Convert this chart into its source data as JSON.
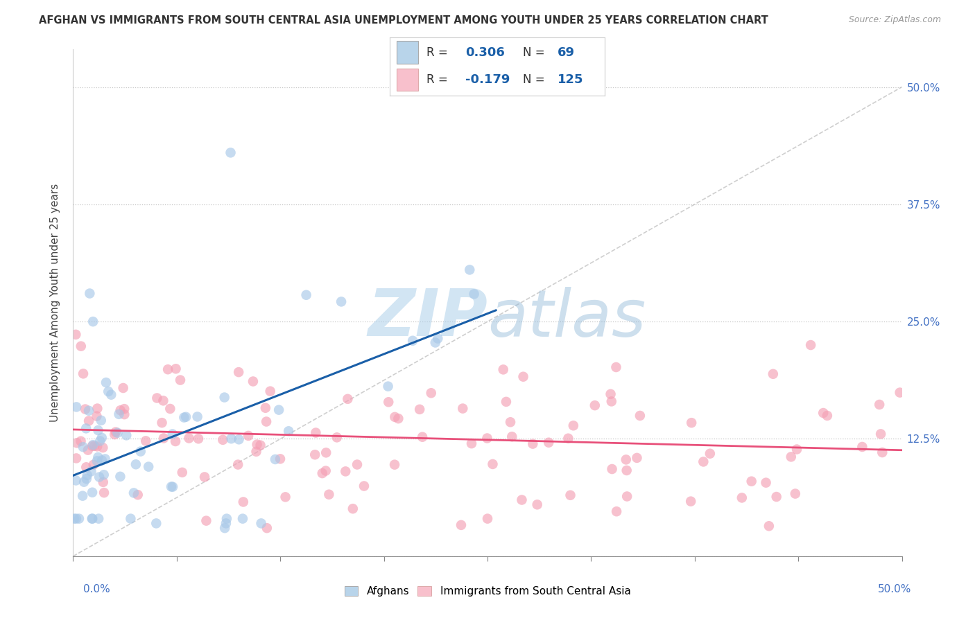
{
  "title": "AFGHAN VS IMMIGRANTS FROM SOUTH CENTRAL ASIA UNEMPLOYMENT AMONG YOUTH UNDER 25 YEARS CORRELATION CHART",
  "source": "Source: ZipAtlas.com",
  "ylabel": "Unemployment Among Youth under 25 years",
  "ytick_values": [
    0,
    0.125,
    0.25,
    0.375,
    0.5
  ],
  "ytick_labels": [
    "",
    "12.5%",
    "25.0%",
    "37.5%",
    "50.0%"
  ],
  "xlim": [
    0.0,
    0.5
  ],
  "ylim": [
    0.0,
    0.54
  ],
  "blue_scatter_color": "#a8c8e8",
  "pink_scatter_color": "#f4a0b5",
  "blue_line_color": "#1a5fa8",
  "pink_line_color": "#e8507a",
  "blue_fill": "#b8d4ea",
  "pink_fill": "#f8c0cc",
  "watermark_color": "#cce0f0",
  "watermark_alpha": 0.6,
  "grid_color": "#c8c8c8",
  "ref_line_color": "#bbbbbb",
  "background_color": "#ffffff",
  "legend_text_color": "#1a5fa8",
  "legend_label_color": "#333333",
  "axis_label_color": "#4472c4",
  "blue_trend_x": [
    0.0,
    0.255
  ],
  "blue_trend_y": [
    0.086,
    0.262
  ],
  "pink_trend_x": [
    0.0,
    0.5
  ],
  "pink_trend_y": [
    0.135,
    0.113
  ],
  "ref_line_x": [
    0.0,
    0.5
  ],
  "ref_line_y": [
    0.0,
    0.5
  ]
}
